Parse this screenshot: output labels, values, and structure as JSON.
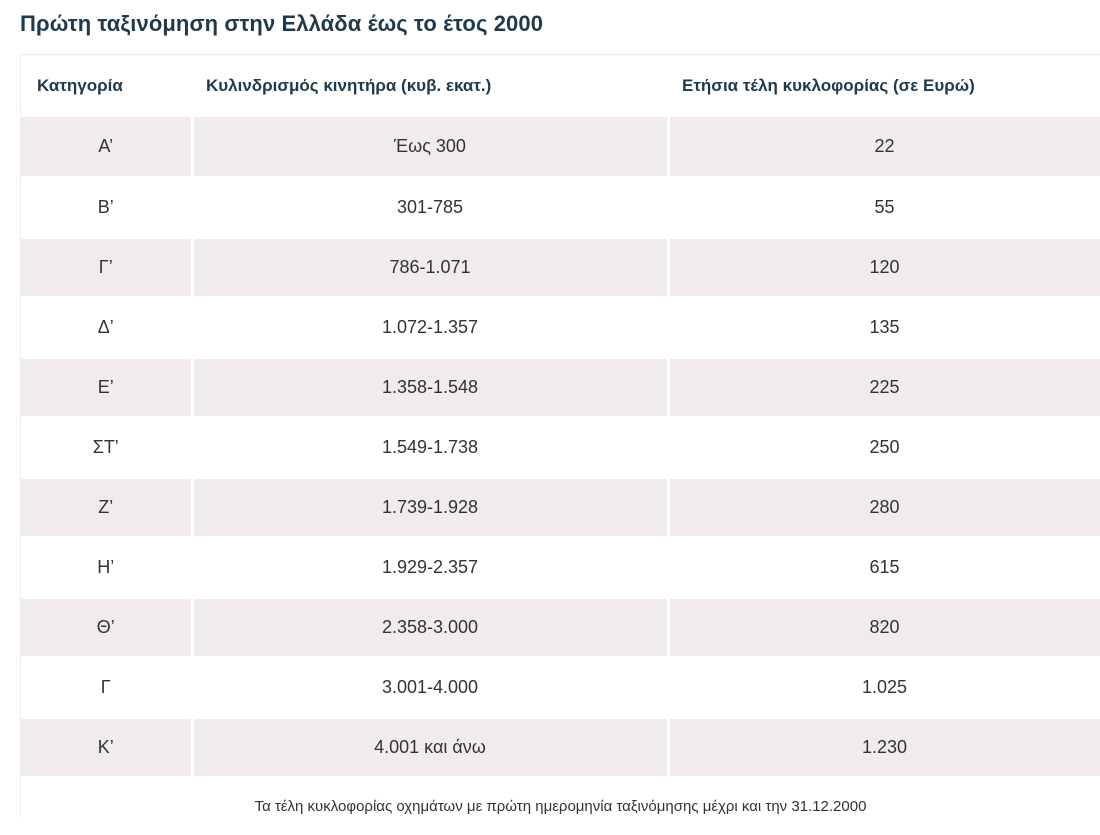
{
  "title": "Πρώτη ταξινόμηση στην Ελλάδα έως το έτος 2000",
  "table": {
    "headers": [
      "Κατηγορία",
      "Κυλινδρισμός κινητήρα (κυβ. εκατ.)",
      "Ετήσια τέλη κυκλοφορίας (σε Ευρώ)"
    ],
    "rows": [
      [
        "Α’",
        "Έως 300",
        "22"
      ],
      [
        "Β’",
        "301-785",
        "55"
      ],
      [
        "Γ’",
        "786-1.071",
        "120"
      ],
      [
        "Δ’",
        "1.072-1.357",
        "135"
      ],
      [
        "Ε’",
        "1.358-1.548",
        "225"
      ],
      [
        "ΣΤ’",
        "1.549-1.738",
        "250"
      ],
      [
        "Ζ’",
        "1.739-1.928",
        "280"
      ],
      [
        "Η’",
        "1.929-2.357",
        "615"
      ],
      [
        "Θ’",
        "2.358-3.000",
        "820"
      ],
      [
        "Γ",
        "3.001-4.000",
        "1.025"
      ],
      [
        "Κ’",
        "4.001 και άνω",
        "1.230"
      ]
    ],
    "caption": "Τα τέλη κυκλοφορίας οχημάτων με πρώτη ημερομηνία ταξινόμησης μέχρι και την 31.12.2000"
  },
  "colors": {
    "title": "#1f3a4d",
    "row_shade": "#f1ebeb"
  }
}
